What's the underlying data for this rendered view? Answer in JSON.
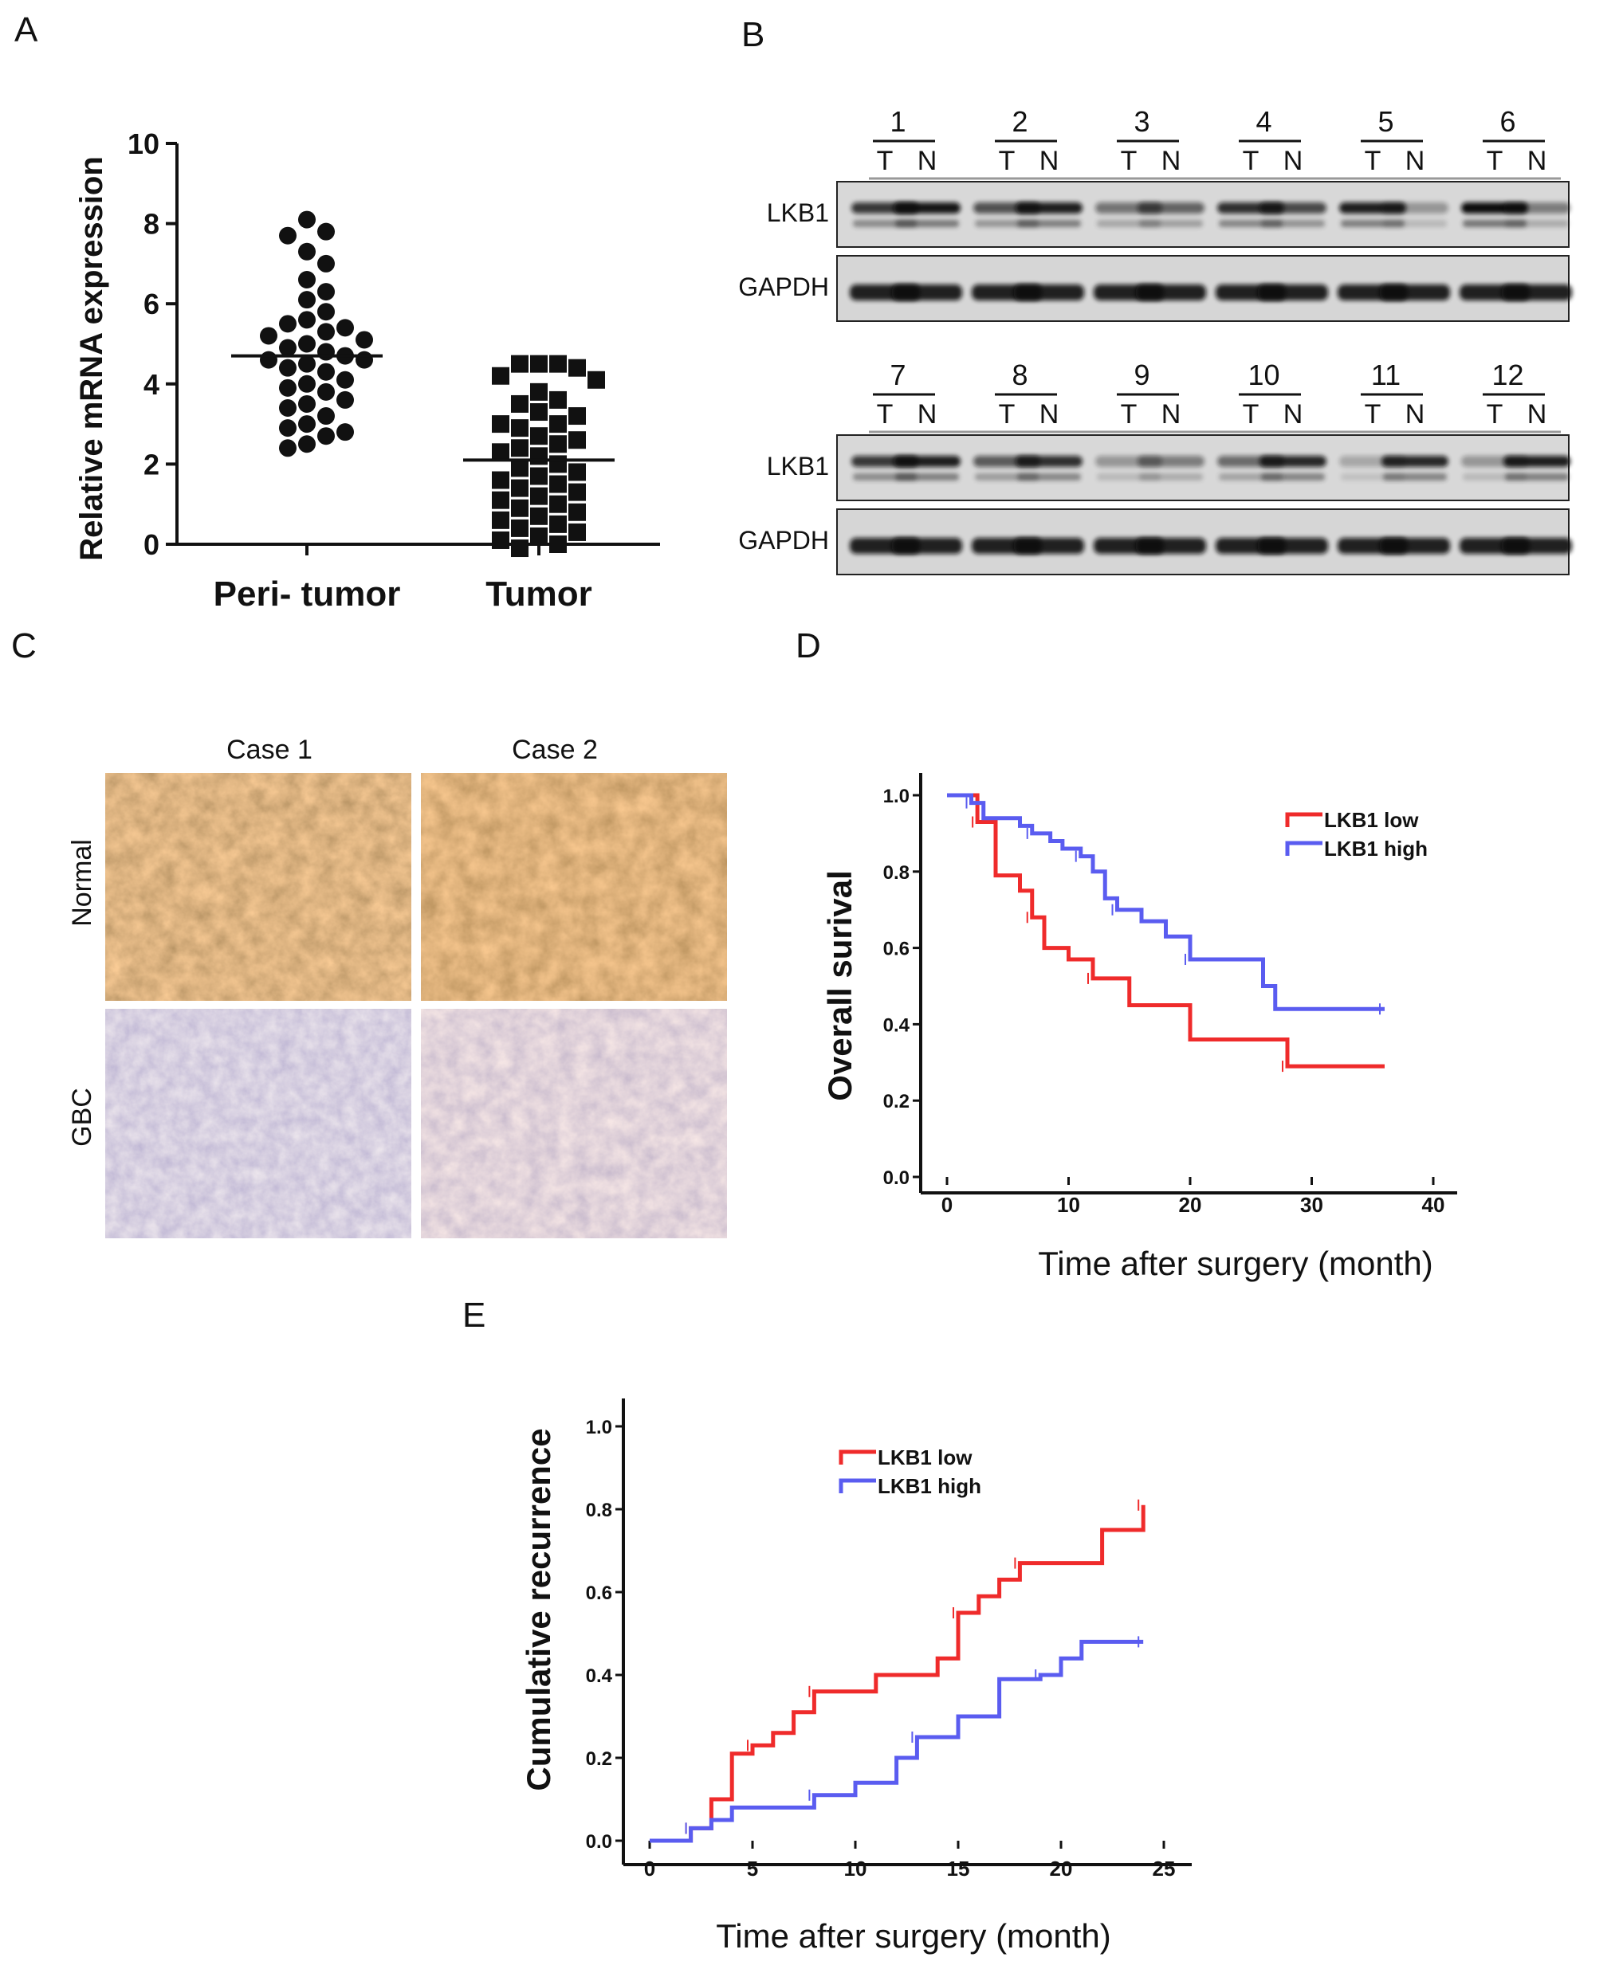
{
  "panel_letters": [
    "A",
    "B",
    "C",
    "D",
    "E"
  ],
  "colors": {
    "low": "#ef2b2b",
    "high": "#5a5cf0",
    "ink": "#111111"
  },
  "chart_data": [
    {
      "panel": "A",
      "type": "scatter",
      "ylabel": "Relative mRNA expression",
      "ylim": [
        0,
        10
      ],
      "yticks": [
        "0",
        "2",
        "4",
        "6",
        "8",
        "10"
      ],
      "categories": [
        "Peri- tumor",
        "Tumor"
      ],
      "means": [
        4.7,
        2.1
      ],
      "groups": [
        {
          "name": "Peri- tumor",
          "marker": "circle",
          "values": [
            8.1,
            7.8,
            7.7,
            7.3,
            7.0,
            6.6,
            6.3,
            6.1,
            5.8,
            5.6,
            5.5,
            5.4,
            5.3,
            5.2,
            5.0,
            4.9,
            4.8,
            4.7,
            4.6,
            4.5,
            4.4,
            4.3,
            4.1,
            4.0,
            3.9,
            3.8,
            3.6,
            3.5,
            3.4,
            3.2,
            3.0,
            2.9,
            2.8,
            2.7,
            2.5,
            2.4,
            4.6,
            5.1
          ]
        },
        {
          "name": "Tumor",
          "marker": "square",
          "values": [
            4.5,
            4.5,
            4.5,
            4.4,
            4.2,
            4.1,
            3.8,
            3.6,
            3.5,
            3.3,
            3.2,
            3.0,
            2.9,
            2.7,
            2.6,
            2.5,
            2.4,
            2.3,
            2.2,
            2.0,
            1.9,
            1.8,
            1.7,
            1.6,
            1.5,
            1.4,
            1.3,
            1.2,
            1.1,
            1.0,
            0.9,
            0.8,
            0.7,
            0.6,
            0.5,
            0.4,
            0.3,
            0.2,
            0.1,
            0.0,
            -0.1,
            3.0
          ]
        }
      ]
    },
    {
      "panel": "D",
      "type": "line",
      "ylabel": "Overall surival",
      "xlabel": "Time after surgery (month)",
      "xlim": [
        0,
        40
      ],
      "ylim": [
        0,
        1
      ],
      "xticks": [
        "0",
        "10",
        "20",
        "30",
        "40"
      ],
      "yticks": [
        "0.0",
        "0.2",
        "0.4",
        "0.6",
        "0.8",
        "1.0"
      ],
      "legend_position": "top-right",
      "series": [
        {
          "name": "LKB1  low",
          "color": "#ef2b2b",
          "x": [
            0,
            2.5,
            4,
            6,
            7,
            8,
            10,
            12,
            15,
            20,
            28,
            36
          ],
          "y": [
            1.0,
            0.93,
            0.79,
            0.75,
            0.68,
            0.6,
            0.57,
            0.52,
            0.45,
            0.36,
            0.29,
            0.29
          ]
        },
        {
          "name": "LKB1  high",
          "color": "#5a5cf0",
          "x": [
            0,
            2,
            3,
            6,
            7,
            8.5,
            9.5,
            11,
            12,
            13,
            14,
            16,
            18,
            20,
            26,
            27,
            36
          ],
          "y": [
            1.0,
            0.98,
            0.94,
            0.92,
            0.9,
            0.88,
            0.86,
            0.84,
            0.8,
            0.73,
            0.7,
            0.67,
            0.63,
            0.57,
            0.5,
            0.44,
            0.44
          ]
        }
      ]
    },
    {
      "panel": "E",
      "type": "line",
      "ylabel": "Cumulative recurrence",
      "xlabel": "Time after surgery (month)",
      "xlim": [
        0,
        25
      ],
      "ylim": [
        0,
        1
      ],
      "xticks": [
        "0",
        "5",
        "10",
        "15",
        "20",
        "25"
      ],
      "yticks": [
        "0.0",
        "0.2",
        "0.4",
        "0.6",
        "0.8",
        "1.0"
      ],
      "legend_position": "top-center",
      "series": [
        {
          "name": "LKB1  low",
          "color": "#ef2b2b",
          "x": [
            0,
            2,
            3,
            4,
            5,
            6,
            7,
            8,
            11,
            14,
            15,
            16,
            17,
            18,
            22,
            23,
            24
          ],
          "y": [
            0.0,
            0.03,
            0.1,
            0.21,
            0.23,
            0.26,
            0.31,
            0.36,
            0.4,
            0.44,
            0.55,
            0.59,
            0.63,
            0.67,
            0.75,
            0.75,
            0.81
          ]
        },
        {
          "name": "LKB1  high",
          "color": "#5a5cf0",
          "x": [
            0,
            2,
            3,
            4,
            8,
            10,
            12,
            13,
            15,
            17,
            19,
            20,
            21,
            24
          ],
          "y": [
            0.0,
            0.03,
            0.05,
            0.08,
            0.11,
            0.14,
            0.2,
            0.25,
            0.3,
            0.39,
            0.4,
            0.44,
            0.48,
            0.48
          ]
        }
      ]
    }
  ],
  "western_blot": {
    "rows": [
      {
        "lanes": [
          "1",
          "2",
          "3",
          "4",
          "5",
          "6"
        ],
        "labels": [
          "LKB1",
          "GAPDH"
        ],
        "lkb1_intensity": [
          [
            0.75,
            0.95
          ],
          [
            0.6,
            0.9
          ],
          [
            0.4,
            0.5
          ],
          [
            0.8,
            0.65
          ],
          [
            0.9,
            0.2
          ],
          [
            1.0,
            0.35
          ]
        ]
      },
      {
        "lanes": [
          "7",
          "8",
          "9",
          "10",
          "11",
          "12"
        ],
        "labels": [
          "LKB1",
          "GAPDH"
        ],
        "lkb1_intensity": [
          [
            0.75,
            0.9
          ],
          [
            0.55,
            0.8
          ],
          [
            0.2,
            0.35
          ],
          [
            0.45,
            0.85
          ],
          [
            0.1,
            0.85
          ],
          [
            0.2,
            0.9
          ]
        ]
      }
    ],
    "pair_labels": [
      "T",
      "N"
    ]
  },
  "ihc": {
    "columns": [
      "Case 1",
      "Case 2"
    ],
    "rows": [
      "Normal",
      "GBC"
    ]
  }
}
